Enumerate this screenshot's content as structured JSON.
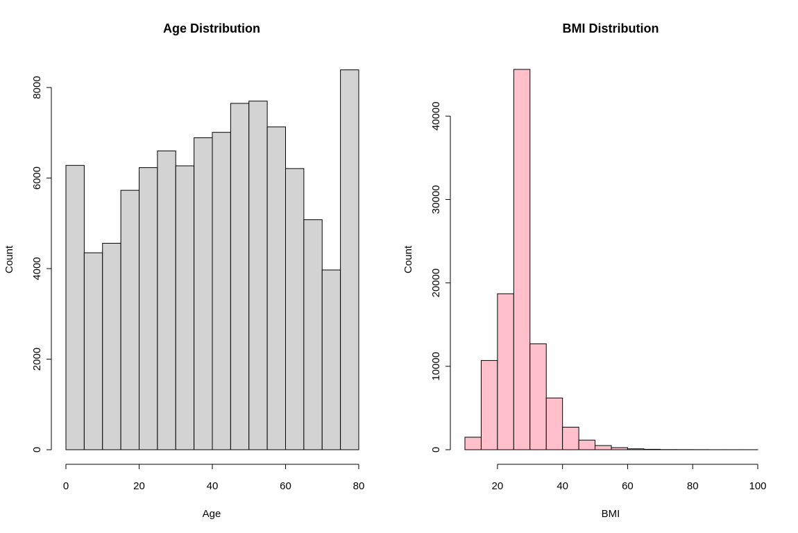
{
  "chart_data": [
    {
      "type": "bar",
      "title": "Age Distribution",
      "xlabel": "Age",
      "ylabel": "Count",
      "bin_edges": [
        0,
        5,
        10,
        15,
        20,
        25,
        30,
        35,
        40,
        45,
        50,
        55,
        60,
        65,
        70,
        75,
        80
      ],
      "values": [
        6280,
        4350,
        4560,
        5730,
        6230,
        6600,
        6270,
        6890,
        7010,
        7650,
        7700,
        7130,
        6210,
        5080,
        3970,
        8390
      ],
      "xlim": [
        0,
        80
      ],
      "ylim": [
        0,
        8400
      ],
      "x_ticks": [
        0,
        20,
        40,
        60,
        80
      ],
      "y_ticks": [
        0,
        2000,
        4000,
        6000,
        8000
      ],
      "bar_color": "#d3d3d3",
      "grid": false
    },
    {
      "type": "bar",
      "title": "BMI Distribution",
      "xlabel": "BMI",
      "ylabel": "Count",
      "bin_edges": [
        10,
        15,
        20,
        25,
        30,
        35,
        40,
        45,
        50,
        55,
        60,
        65,
        70,
        75,
        80,
        85,
        90,
        95,
        100
      ],
      "values": [
        1500,
        10700,
        18700,
        45600,
        12700,
        6200,
        2700,
        1150,
        500,
        250,
        110,
        50,
        20,
        15,
        10,
        5,
        5,
        5
      ],
      "xlim": [
        10,
        100
      ],
      "ylim": [
        0,
        45600
      ],
      "x_ticks": [
        20,
        40,
        60,
        80,
        100
      ],
      "y_ticks": [
        0,
        10000,
        20000,
        30000,
        40000
      ],
      "bar_color": "#ffc0cb",
      "grid": false
    }
  ]
}
